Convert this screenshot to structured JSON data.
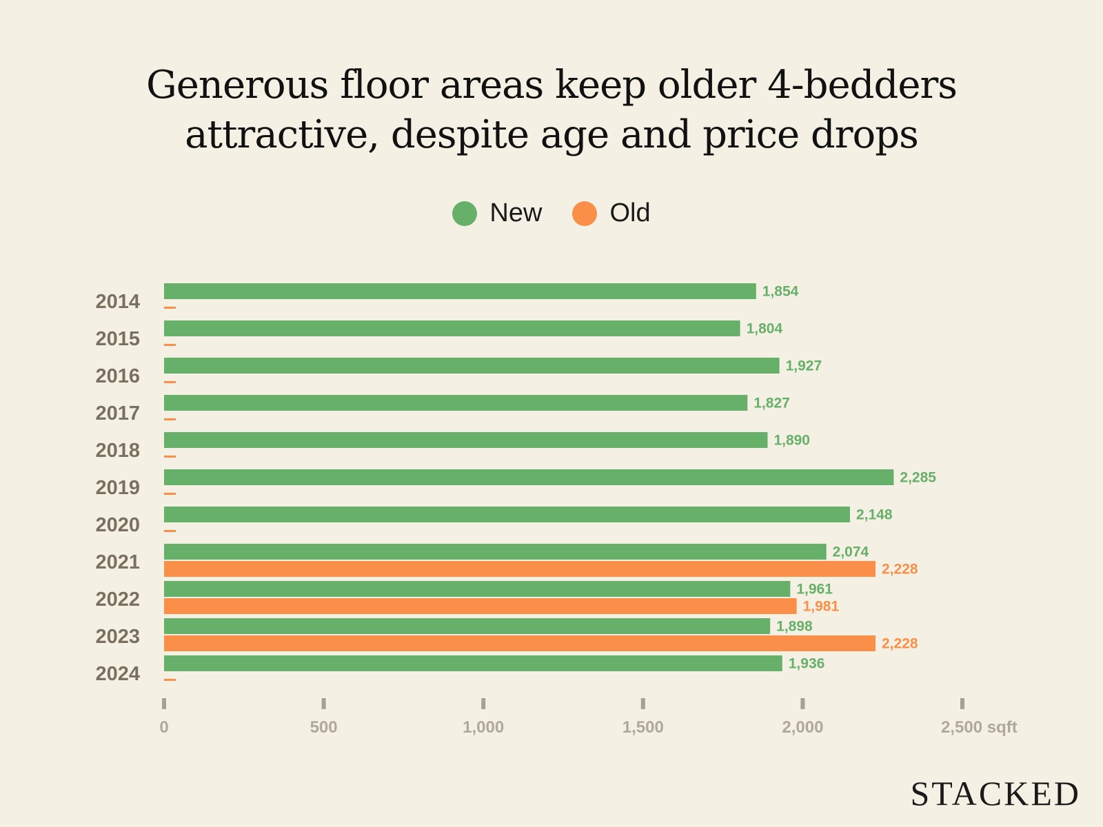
{
  "title_lines": [
    "Generous floor areas keep older 4-bedders",
    "attractive, despite age and price drops"
  ],
  "brand": "STACKED",
  "colors": {
    "new": "#66b06a",
    "old": "#f98f48",
    "background": "#f5f0e4",
    "axis": "#a8a090"
  },
  "chart_data": {
    "type": "bar",
    "orientation": "horizontal",
    "title": "Generous floor areas keep older 4-bedders attractive, despite age and price drops",
    "categories": [
      "2014",
      "2015",
      "2016",
      "2017",
      "2018",
      "2019",
      "2020",
      "2021",
      "2022",
      "2023",
      "2024"
    ],
    "series": [
      {
        "name": "New",
        "values": [
          1854,
          1804,
          1927,
          1827,
          1890,
          2285,
          2148,
          2074,
          1961,
          1898,
          1936
        ],
        "labels": [
          "1,854",
          "1,804",
          "1,927",
          "1,827",
          "1,890",
          "2,285",
          "2,148",
          "2,074",
          "1,961",
          "1,898",
          "1,936"
        ]
      },
      {
        "name": "Old",
        "values": [
          null,
          null,
          null,
          null,
          null,
          null,
          null,
          2228,
          1981,
          2228,
          null
        ],
        "labels": [
          "",
          "",
          "",
          "",
          "",
          "",
          "",
          "2,228",
          "1,981",
          "2,228",
          ""
        ]
      }
    ],
    "xlim": [
      0,
      2500
    ],
    "xticks": [
      0,
      500,
      1000,
      1500,
      2000,
      2500
    ],
    "xtick_labels": [
      "0",
      "500",
      "1,000",
      "1,500",
      "2,000",
      "2,500 sqft"
    ],
    "xlabel": "",
    "ylabel": "",
    "legend": "top-center",
    "grid": false
  }
}
